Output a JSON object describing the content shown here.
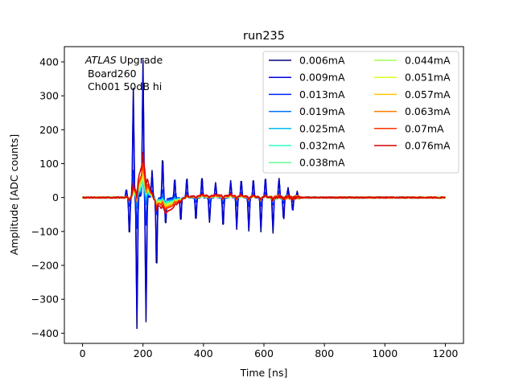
{
  "chart_data": {
    "type": "line",
    "title": "run235",
    "xlabel": "Time [ns]",
    "ylabel": "Amplitude [ADC counts]",
    "xlim": [
      -60,
      1260
    ],
    "ylim": [
      -430,
      445
    ],
    "xticks": [
      0,
      200,
      400,
      600,
      800,
      1000,
      1200
    ],
    "yticks": [
      -400,
      -300,
      -200,
      -100,
      0,
      100,
      200,
      300,
      400
    ],
    "grid": false,
    "legend_position": "top-right",
    "legend_columns": 2,
    "annotation": {
      "line1_italic": "ATLAS",
      "line1_rest": " Upgrade",
      "line2": "Board260",
      "line3": "Ch001 50dB hi"
    },
    "sample_x": [
      0,
      1200,
      2
    ],
    "series": [
      {
        "name": "0.006mA",
        "color": "#00007f",
        "peak": 6,
        "ringing": 1.0
      },
      {
        "name": "0.009mA",
        "color": "#0000d6",
        "peak": 8,
        "ringing": 0.9
      },
      {
        "name": "0.013mA",
        "color": "#0024ff",
        "peak": 12,
        "ringing": 0.25
      },
      {
        "name": "0.019mA",
        "color": "#0070ff",
        "peak": 18,
        "ringing": 0.1
      },
      {
        "name": "0.025mA",
        "color": "#00bcf2",
        "peak": 24,
        "ringing": 0.06
      },
      {
        "name": "0.032mA",
        "color": "#2dffca",
        "peak": 31,
        "ringing": 0.05
      },
      {
        "name": "0.038mA",
        "color": "#62ff94",
        "peak": 37,
        "ringing": 0.05
      },
      {
        "name": "0.044mA",
        "color": "#a4ff53",
        "peak": 43,
        "ringing": 0.05
      },
      {
        "name": "0.051mA",
        "color": "#d7ff1f",
        "peak": 50,
        "ringing": 0.05
      },
      {
        "name": "0.057mA",
        "color": "#ffc800",
        "peak": 56,
        "ringing": 0.08
      },
      {
        "name": "0.063mA",
        "color": "#ff7a00",
        "peak": 62,
        "ringing": 0.1
      },
      {
        "name": "0.07mA",
        "color": "#ff3000",
        "peak": 68,
        "ringing": 0.08
      },
      {
        "name": "0.076mA",
        "color": "#d60000",
        "peak": 93,
        "ringing": 0.1
      }
    ],
    "spikes_ns": [
      [
        145,
        24
      ],
      [
        155,
        -115
      ],
      [
        168,
        320
      ],
      [
        180,
        -390
      ],
      [
        200,
        400
      ],
      [
        210,
        -370
      ],
      [
        230,
        80
      ],
      [
        245,
        -215
      ],
      [
        265,
        125
      ],
      [
        275,
        -80
      ],
      [
        305,
        60
      ],
      [
        325,
        -70
      ],
      [
        345,
        60
      ],
      [
        375,
        -70
      ],
      [
        395,
        62
      ],
      [
        420,
        -75
      ],
      [
        440,
        45
      ],
      [
        465,
        -90
      ],
      [
        490,
        48
      ],
      [
        510,
        -95
      ],
      [
        525,
        55
      ],
      [
        550,
        -100
      ],
      [
        565,
        55
      ],
      [
        590,
        -100
      ],
      [
        605,
        60
      ],
      [
        630,
        -100
      ],
      [
        650,
        55
      ],
      [
        665,
        -70
      ],
      [
        680,
        30
      ],
      [
        695,
        -40
      ],
      [
        710,
        15
      ]
    ]
  }
}
